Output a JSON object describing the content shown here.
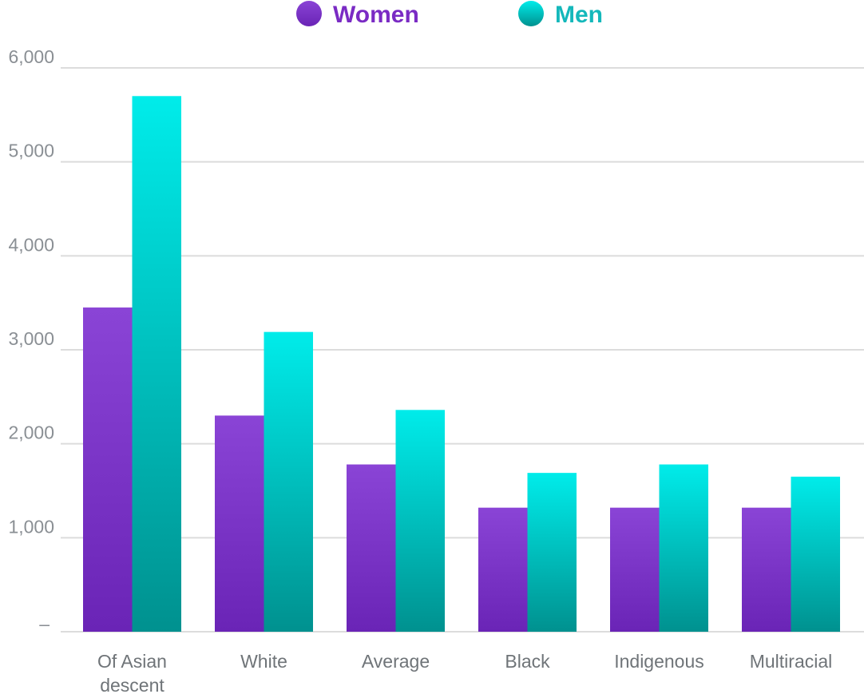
{
  "chart_data": {
    "type": "bar",
    "categories": [
      "Of Asian descent",
      "White",
      "Average",
      "Black",
      "Indigenous",
      "Multiracial"
    ],
    "series": [
      {
        "name": "Women",
        "values": [
          3450,
          2300,
          1780,
          1320,
          1320,
          1320
        ]
      },
      {
        "name": "Men",
        "values": [
          5700,
          3190,
          2360,
          1690,
          1780,
          1650
        ]
      }
    ],
    "ylim": [
      0,
      6000
    ],
    "yticks": [
      0,
      1000,
      2000,
      3000,
      4000,
      5000,
      6000
    ],
    "ytick_labels": [
      "–",
      "1,000",
      "2,000",
      "3,000",
      "4,000",
      "5,000",
      "6,000"
    ],
    "grid": true,
    "legend_position": "top-center",
    "colors": {
      "Women": {
        "top": "#8a44d6",
        "bottom": "#6a24b6"
      },
      "Men": {
        "top": "#00ecea",
        "bottom": "#00918f"
      },
      "grid": "#dcdcdc",
      "women_legend_text": "#7a2bc4",
      "men_legend_text": "#14b8bb"
    }
  }
}
